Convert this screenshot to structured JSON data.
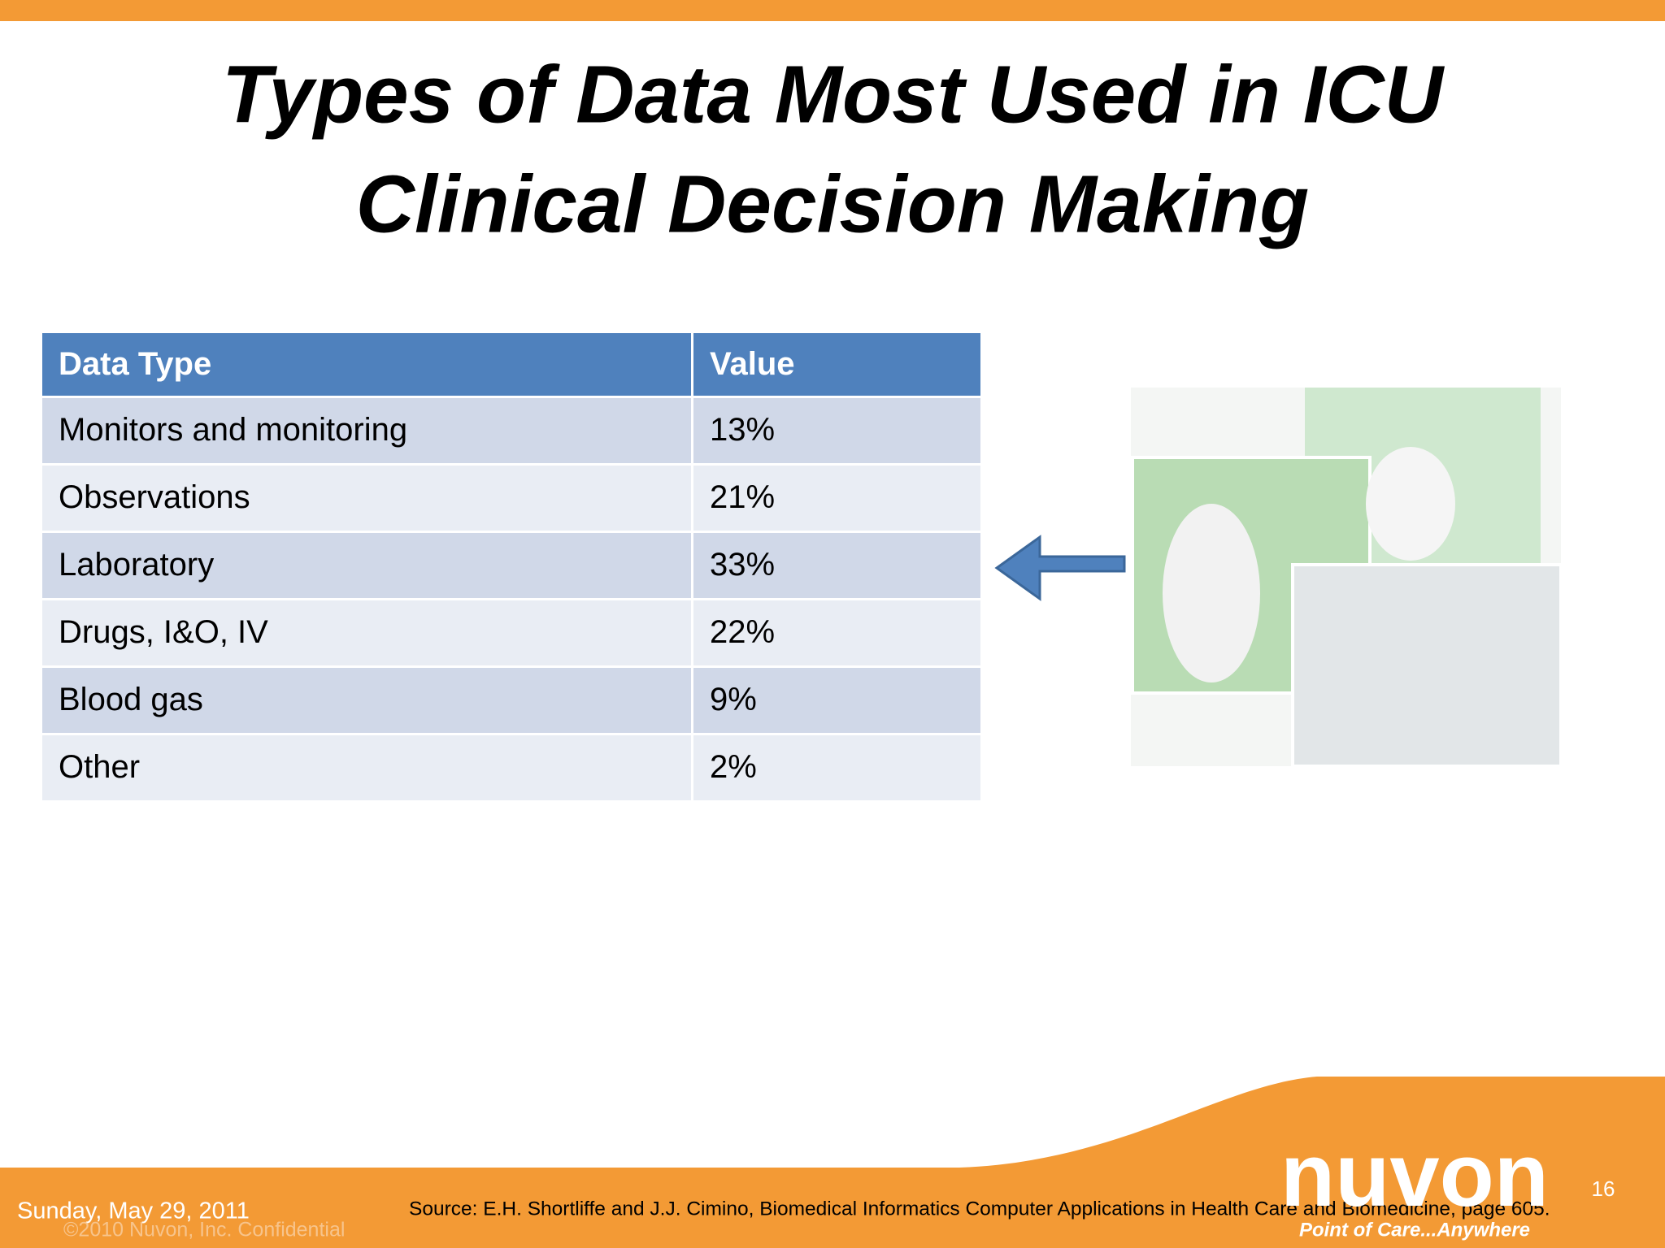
{
  "slide": {
    "title": [
      "Types of Data Most Used in ICU",
      "Clinical Decision Making"
    ],
    "table": {
      "header": [
        "Data Type",
        "Value"
      ],
      "rows": [
        [
          "Monitors and monitoring",
          "13%"
        ],
        [
          "Observations",
          "21%"
        ],
        [
          "Laboratory",
          "33%"
        ],
        [
          "Drugs, I&O, IV",
          "22%"
        ],
        [
          "Blood gas",
          "9%"
        ],
        [
          "Other",
          "2%"
        ]
      ]
    },
    "footer": {
      "date": "Sunday, May 29, 2011",
      "confidential": "©2010 Nuvon, Inc. Confidential",
      "source": "Source: E.H. Shortliffe and J.J. Cimino, Biomedical Informatics Computer Applications in Health Care and Biomedicine, page 605.",
      "page": "16",
      "logo": "nuvon",
      "tagline": "Point of Care...Anywhere"
    }
  }
}
